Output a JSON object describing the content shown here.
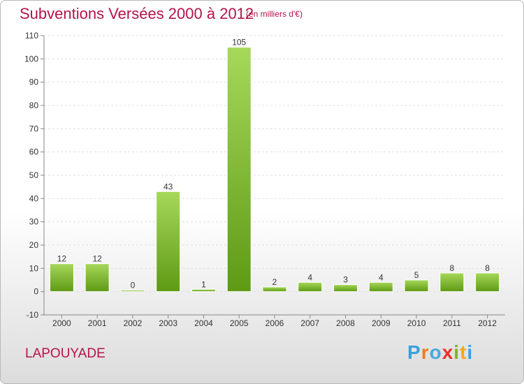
{
  "title": "Subventions Versées 2000 à 2012",
  "subtitle": "(en milliers d'€)",
  "commune": "LAPOUYADE",
  "logo": {
    "text": "Proxiti",
    "letter_colors": [
      "#3aa1dc",
      "#f07c1e",
      "#4aa8dd",
      "#e5332a",
      "#7ab520",
      "#f2a81c",
      "#3aa1dc"
    ]
  },
  "colors": {
    "title": "#b5134a",
    "bar_top": "#a6d85a",
    "bar_bottom": "#5e9a14",
    "grid": "#e0e0e0",
    "axis": "#888888"
  },
  "chart_data": {
    "type": "bar",
    "categories": [
      "2000",
      "2001",
      "2002",
      "2003",
      "2004",
      "2005",
      "2006",
      "2007",
      "2008",
      "2009",
      "2010",
      "2011",
      "2012"
    ],
    "values": [
      12,
      12,
      0,
      43,
      1,
      105,
      2,
      4,
      3,
      4,
      5,
      8,
      8
    ],
    "ylim": [
      -10,
      110
    ],
    "yticks": [
      -10,
      0,
      10,
      20,
      30,
      40,
      50,
      60,
      70,
      80,
      90,
      100,
      110
    ],
    "grid": true,
    "xlabel": "",
    "ylabel": ""
  }
}
